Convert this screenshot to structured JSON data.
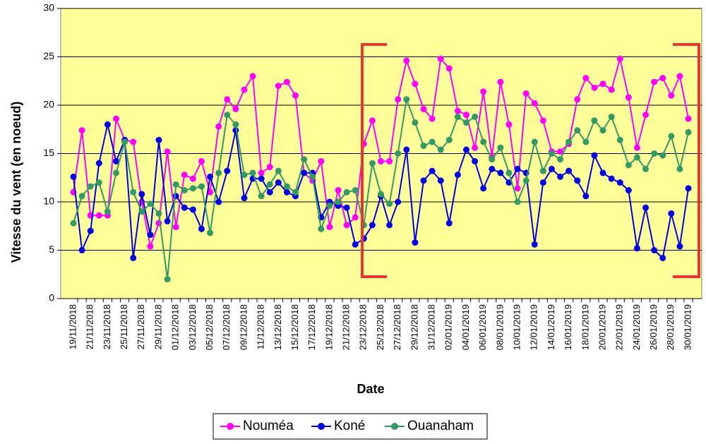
{
  "chart_data": {
    "type": "line",
    "x_label": "Date",
    "y_label": "Vitesse du vent (en noeud)",
    "categories": [
      "19/11/2018",
      null,
      "21/11/2018",
      null,
      "23/11/2018",
      null,
      "25/11/2018",
      null,
      "27/11/2018",
      null,
      "29/11/2018",
      null,
      "01/12/2018",
      null,
      "03/12/2018",
      null,
      "05/12/2018",
      null,
      "07/12/2018",
      null,
      "09/12/2018",
      null,
      "11/12/2018",
      null,
      "13/12/2018",
      null,
      "15/12/2018",
      null,
      "17/12/2018",
      null,
      "19/12/2018",
      null,
      "21/12/2018",
      null,
      "23/12/2018",
      null,
      "25/12/2018",
      null,
      "27/12/2018",
      null,
      "29/12/2018",
      null,
      "31/12/2018",
      null,
      "02/01/2019",
      null,
      "04/01/2019",
      null,
      "06/01/2019",
      null,
      "08/01/2019",
      null,
      "10/01/2019",
      null,
      "12/01/2019",
      null,
      "14/01/2019",
      null,
      "16/01/2019",
      null,
      "18/01/2019",
      null,
      "20/01/2019",
      null,
      "22/01/2019",
      null,
      "24/01/2019",
      null,
      "26/01/2019",
      null,
      "28/01/2019",
      null,
      "30/01/2019"
    ],
    "series": [
      {
        "name": "Nouméa",
        "color": "#ff00ff",
        "values": [
          11.0,
          17.4,
          8.6,
          8.6,
          8.6,
          18.6,
          16.4,
          16.2,
          10.0,
          5.4,
          7.8,
          15.2,
          7.4,
          12.8,
          12.4,
          14.2,
          11.0,
          17.8,
          20.6,
          19.6,
          21.6,
          23.0,
          13.0,
          13.6,
          22.0,
          22.4,
          21.0,
          13.0,
          12.2,
          14.2,
          7.4,
          11.2,
          7.6,
          8.4,
          16.0,
          18.4,
          14.2,
          14.2,
          20.6,
          24.6,
          22.2,
          19.6,
          18.6,
          24.8,
          23.8,
          19.4,
          19.0,
          15.6,
          21.4,
          14.6,
          22.4,
          18.0,
          11.4,
          21.2,
          20.2,
          18.4,
          15.2,
          15.2,
          16.0,
          20.6,
          22.8,
          21.8,
          22.2,
          21.6,
          24.8,
          20.8,
          15.6,
          19.0,
          22.4,
          22.8,
          21.0,
          23.0,
          18.6
        ]
      },
      {
        "name": "Koné",
        "color": "#0000e0",
        "values": [
          12.6,
          5.0,
          7.0,
          14.0,
          18.0,
          14.2,
          16.4,
          4.2,
          10.8,
          6.6,
          16.4,
          8.0,
          10.6,
          9.4,
          9.2,
          7.2,
          12.6,
          10.0,
          13.2,
          17.4,
          10.4,
          12.4,
          12.4,
          11.0,
          12.0,
          11.0,
          10.6,
          13.0,
          13.0,
          8.4,
          10.0,
          9.6,
          9.4,
          5.6,
          6.2,
          7.6,
          10.6,
          7.6,
          10.0,
          15.4,
          5.8,
          12.2,
          13.2,
          12.2,
          7.8,
          12.8,
          15.4,
          14.2,
          11.4,
          13.4,
          13.0,
          12.0,
          13.4,
          13.0,
          5.6,
          12.0,
          13.4,
          12.6,
          13.2,
          12.2,
          10.6,
          14.8,
          13.0,
          12.4,
          12.0,
          11.2,
          5.2,
          9.4,
          5.0,
          4.2,
          8.8,
          5.4,
          11.4
        ]
      },
      {
        "name": "Ouanaham",
        "color": "#339966",
        "values": [
          7.8,
          10.6,
          11.6,
          12.0,
          9.0,
          13.0,
          16.2,
          11.0,
          9.0,
          9.8,
          8.8,
          2.0,
          11.8,
          11.2,
          11.4,
          11.6,
          6.8,
          13.0,
          19.0,
          18.0,
          12.8,
          13.0,
          10.6,
          11.8,
          13.2,
          11.6,
          11.0,
          14.4,
          12.6,
          7.2,
          9.6,
          10.0,
          11.0,
          11.2,
          7.6,
          14.0,
          10.8,
          9.8,
          15.0,
          20.6,
          18.2,
          15.8,
          16.2,
          15.4,
          16.4,
          18.8,
          18.2,
          18.8,
          16.2,
          14.4,
          15.6,
          13.0,
          10.0,
          12.2,
          16.2,
          13.2,
          15.0,
          14.4,
          16.2,
          17.4,
          16.2,
          18.4,
          17.4,
          18.8,
          16.4,
          13.8,
          14.6,
          13.4,
          15.0,
          14.8,
          16.8,
          13.4,
          17.2
        ]
      }
    ],
    "ylim": [
      0,
      30
    ],
    "yticks": [
      0,
      5,
      10,
      15,
      20,
      25,
      30
    ],
    "grid": true,
    "legend": "bottom"
  }
}
